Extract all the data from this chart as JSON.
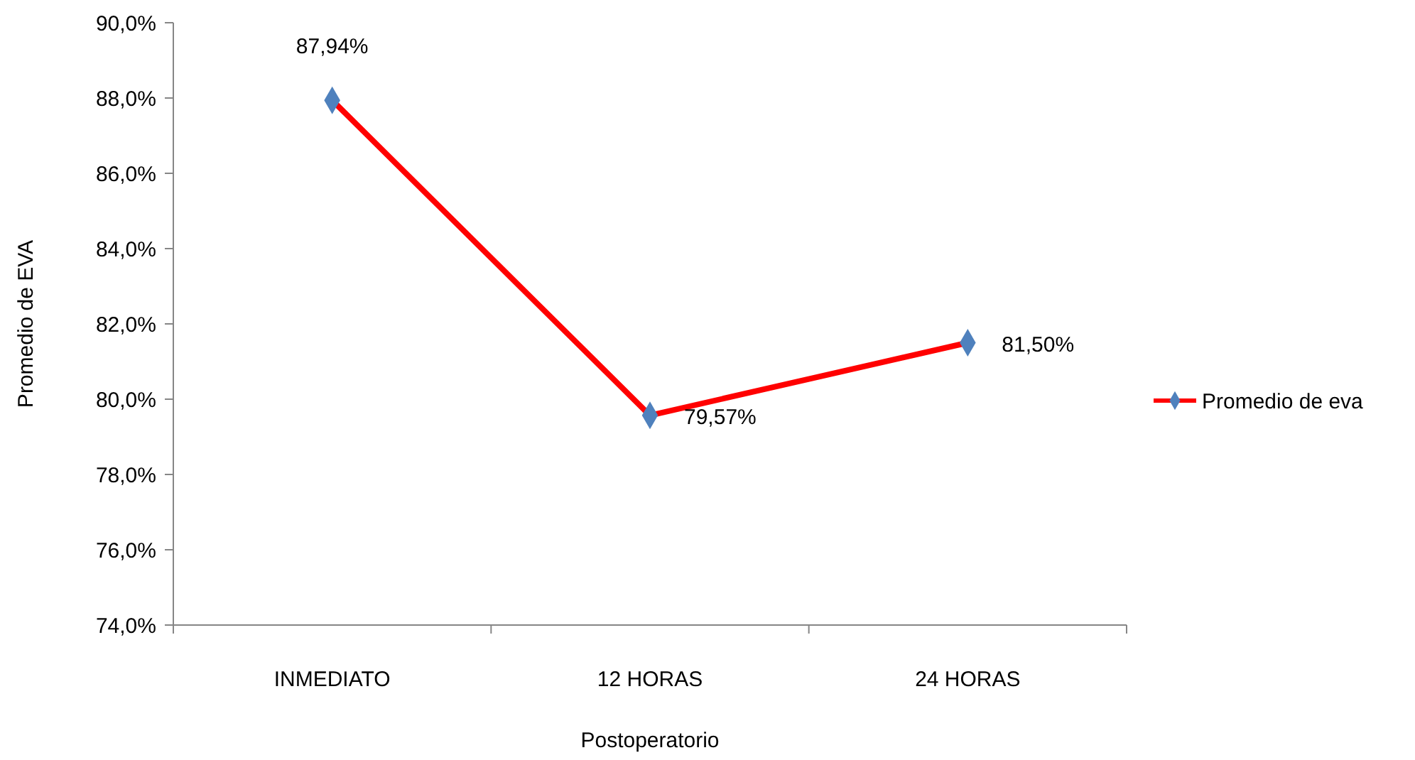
{
  "chart_data": {
    "type": "line",
    "xlabel": "Postoperatorio",
    "ylabel": "Promedio de EVA",
    "categories": [
      "INMEDIATO",
      "12 HORAS",
      "24 HORAS"
    ],
    "series": [
      {
        "name": "Promedio de eva",
        "color": "#ff0000",
        "values": [
          87.94,
          79.57,
          81.5
        ],
        "colors": [
          "#4f81bd",
          "#4f81bd",
          "#4f81bd"
        ],
        "value_labels": [
          "87,94%",
          "79,57%",
          "81,50%"
        ]
      }
    ],
    "marker": "diamond",
    "ylim": [
      74,
      90
    ],
    "yticks": [
      {
        "value": 74,
        "label": "74,0%"
      },
      {
        "value": 76,
        "label": "76,0%"
      },
      {
        "value": 78,
        "label": "78,0%"
      },
      {
        "value": 80,
        "label": "80,0%"
      },
      {
        "value": 82,
        "label": "82,0%"
      },
      {
        "value": 84,
        "label": "84,0%"
      },
      {
        "value": 86,
        "label": "86,0%"
      },
      {
        "value": 88,
        "label": "88,0%"
      },
      {
        "value": 90,
        "label": "90,0%"
      }
    ],
    "grid": false,
    "legend": "right"
  }
}
